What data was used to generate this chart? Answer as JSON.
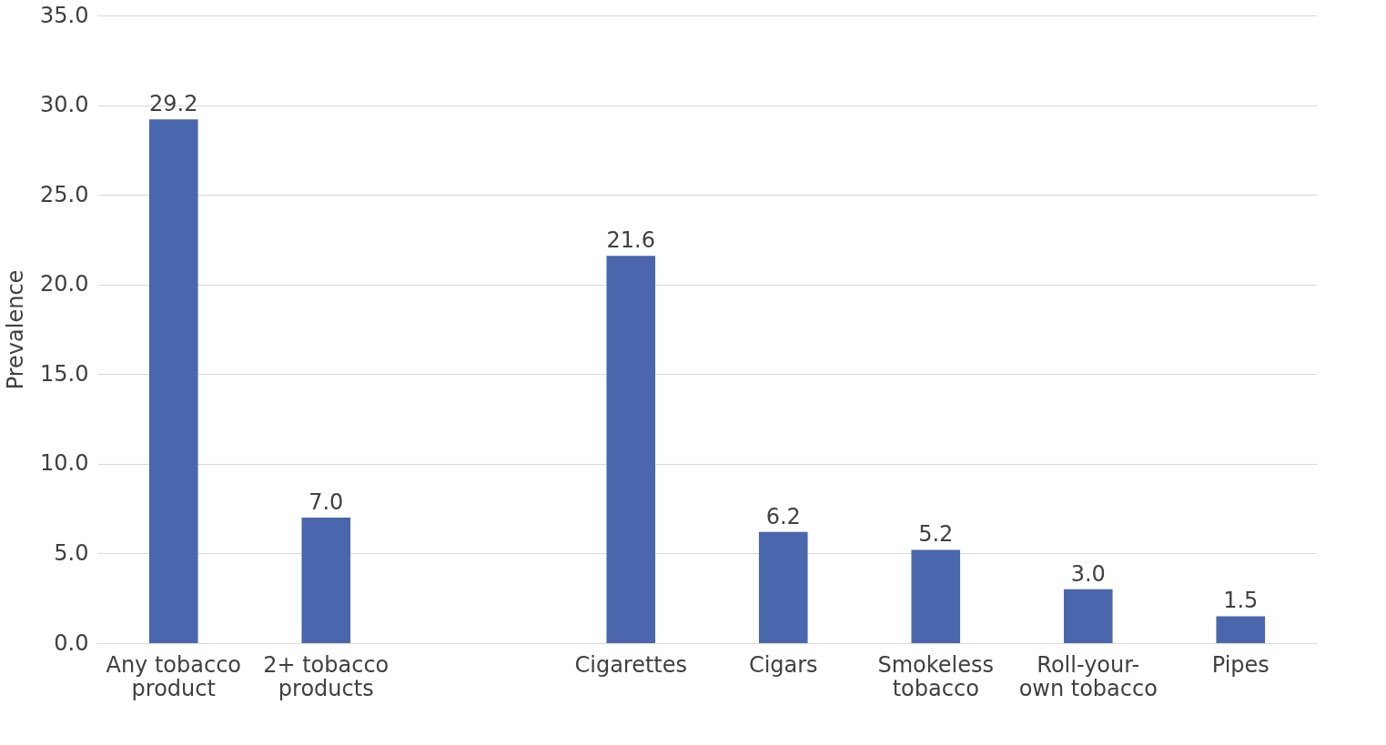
{
  "chart_data": {
    "type": "bar",
    "ylabel": "Prevalence",
    "categories": [
      "Any tobacco product",
      "2+ tobacco products",
      null,
      "Cigarettes",
      "Cigars",
      "Smokeless tobacco",
      "Roll-your-own tobacco",
      "Pipes"
    ],
    "values": [
      29.2,
      7.0,
      null,
      21.6,
      6.2,
      5.2,
      3.0,
      1.5
    ],
    "color": "#4a66ac",
    "ylim": [
      0,
      35
    ],
    "yticks": [
      {
        "value": 0,
        "label": "0.0"
      },
      {
        "value": 5,
        "label": "5.0"
      },
      {
        "value": 10,
        "label": "10.0"
      },
      {
        "value": 15,
        "label": "15.0"
      },
      {
        "value": 20,
        "label": "20.0"
      },
      {
        "value": 25,
        "label": "25.0"
      },
      {
        "value": 30,
        "label": "30.0"
      },
      {
        "value": 35,
        "label": "35.0"
      }
    ],
    "value_labels": [
      "29.2",
      "7.0",
      null,
      "21.6",
      "6.2",
      "5.2",
      "3.0",
      "1.5"
    ],
    "grid": "y"
  }
}
